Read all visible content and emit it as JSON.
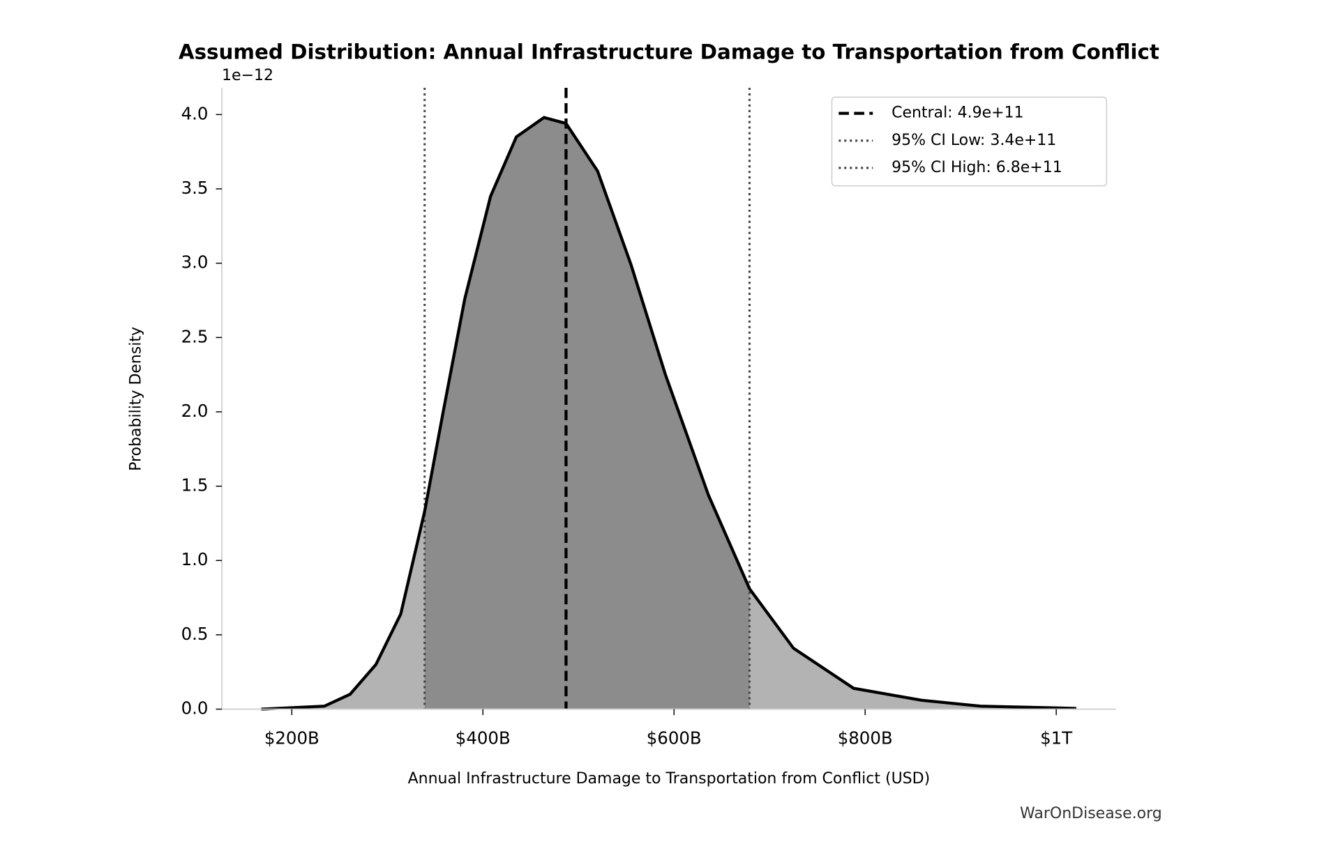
{
  "chart_data": {
    "type": "density",
    "title": "Assumed Distribution: Annual Infrastructure Damage to Transportation from Conflict",
    "x_label": "Annual Infrastructure Damage to Transportation from Conflict (USD)",
    "y_label": "Probability Density",
    "y_offset_label": "1e−12",
    "watermark": "WarOnDisease.org",
    "x": [
      168000000000,
      234000000000,
      261000000000,
      288000000000,
      314000000000,
      339000000000,
      359000000000,
      381000000000,
      408000000000,
      435000000000,
      464000000000,
      487000000000,
      520000000000,
      555000000000,
      591000000000,
      636000000000,
      679000000000,
      725000000000,
      788000000000,
      859000000000,
      921000000000,
      1021000000000
    ],
    "values": [
      0,
      0.02,
      0.1,
      0.3,
      0.64,
      1.33,
      2.02,
      2.76,
      3.45,
      3.85,
      3.98,
      3.94,
      3.62,
      2.99,
      2.25,
      1.44,
      0.81,
      0.41,
      0.14,
      0.06,
      0.02,
      0.005
    ],
    "color": "#000000",
    "fill_color": "#b3b3b3",
    "ci_fill_color": "#8c8c8c",
    "vlines": [
      {
        "name": "Central: 4.9e+11",
        "value": 487000000000,
        "style": "dashed",
        "color": "#000000"
      },
      {
        "name": "95% CI Low: 3.4e+11",
        "value": 339000000000,
        "style": "dotted",
        "color": "#444444"
      },
      {
        "name": "95% CI High: 6.8e+11",
        "value": 679000000000,
        "style": "dotted",
        "color": "#444444"
      }
    ],
    "xlim": [
      126800000000,
      1062500000000
    ],
    "ylim": [
      0,
      4.18
    ],
    "xticks": [
      {
        "value": 200000000000,
        "label": "$200B"
      },
      {
        "value": 400000000000,
        "label": "$400B"
      },
      {
        "value": 600000000000,
        "label": "$600B"
      },
      {
        "value": 800000000000,
        "label": "$800B"
      },
      {
        "value": 1000000000000,
        "label": "$1T"
      }
    ],
    "yticks": [
      {
        "value": 0,
        "label": "0.0"
      },
      {
        "value": 0.5,
        "label": "0.5"
      },
      {
        "value": 1,
        "label": "1.0"
      },
      {
        "value": 1.5,
        "label": "1.5"
      },
      {
        "value": 2,
        "label": "2.0"
      },
      {
        "value": 2.5,
        "label": "2.5"
      },
      {
        "value": 3,
        "label": "3.0"
      },
      {
        "value": 3.5,
        "label": "3.5"
      },
      {
        "value": 4,
        "label": "4.0"
      }
    ],
    "grid": false,
    "legend": "upper right"
  }
}
